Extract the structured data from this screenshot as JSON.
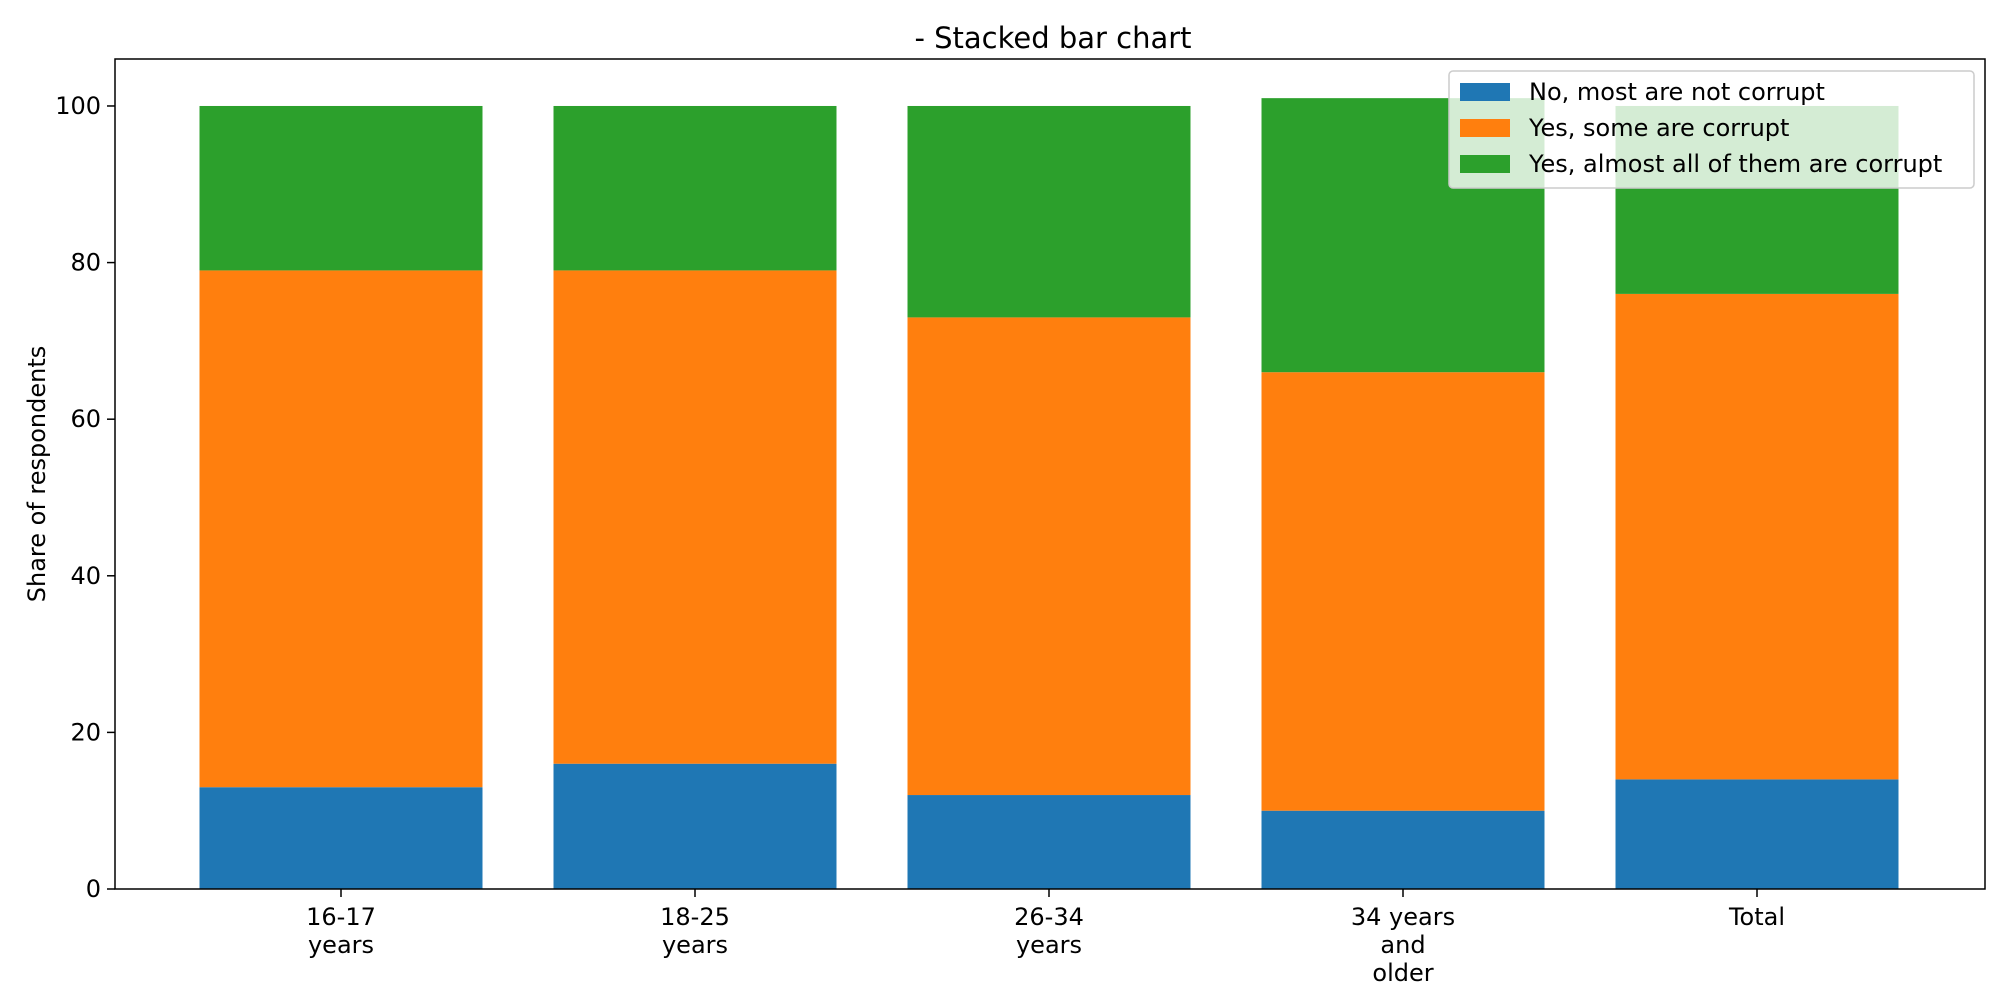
{
  "chart_data": {
    "type": "bar",
    "stacked": true,
    "title": "- Stacked bar chart",
    "xlabel": "",
    "ylabel": "Share of respondents",
    "ylim": [
      0,
      106
    ],
    "yticks": [
      0,
      20,
      40,
      60,
      80,
      100
    ],
    "categories": [
      [
        "16-17",
        "years"
      ],
      [
        "18-25",
        "years"
      ],
      [
        "26-34",
        "years"
      ],
      [
        "34 years",
        "and",
        "older"
      ],
      [
        "Total"
      ]
    ],
    "series": [
      {
        "name": "No, most are not corrupt",
        "color": "#1f77b4",
        "values": [
          13,
          16,
          12,
          10,
          14
        ]
      },
      {
        "name": "Yes, some are corrupt",
        "color": "#ff7f0e",
        "values": [
          66,
          63,
          61,
          56,
          62
        ]
      },
      {
        "name": "Yes, almost all of them are corrupt",
        "color": "#2ca02c",
        "values": [
          21,
          21,
          27,
          35,
          24
        ]
      }
    ],
    "grid": false,
    "legend_position": "top-right"
  }
}
